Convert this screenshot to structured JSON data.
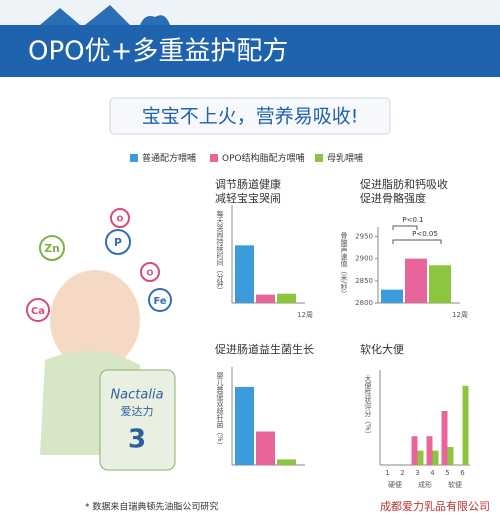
{
  "header": {
    "title": "OPO优+多重益护配方",
    "slogan": "宝宝不上火，营养易吸收!"
  },
  "legend": [
    {
      "name": "普通配方喂哺",
      "color": "#3b9bdb"
    },
    {
      "name": "OPO结构脂配方喂哺",
      "color": "#e8649a"
    },
    {
      "name": "母乳喂哺",
      "color": "#8cc63f"
    }
  ],
  "product": {
    "elements": [
      "Zn",
      "O",
      "P",
      "O",
      "Ca",
      "Fe"
    ],
    "brand": "Nactalia",
    "brand_cn": "爱达力",
    "stage": "3"
  },
  "footnote": "* 数据来自瑞典顿先油脂公司研究",
  "watermark": "成都爱力乳品有限公司",
  "chart_data": [
    {
      "type": "bar",
      "title": "调节肠道健康 减轻宝宝哭闹",
      "ylabel": "每天哭闹持续时间（分钟）",
      "xlabel": "12周",
      "values": [
        62,
        9,
        10
      ],
      "colors": [
        "#3b9bdb",
        "#e8649a",
        "#8cc63f"
      ],
      "ylim": [
        0,
        100
      ]
    },
    {
      "type": "bar",
      "title": "促进脂肪和钙吸收 促进骨骼强度",
      "ylabel": "骨骼声速值（米/秒）",
      "xlabel": "12周",
      "values": [
        2830,
        2900,
        2885
      ],
      "colors": [
        "#3b9bdb",
        "#e8649a",
        "#8cc63f"
      ],
      "ylim": [
        2800,
        2960
      ],
      "yticks": [
        2800,
        2850,
        2900,
        2950
      ],
      "annotations": [
        "P<0.1",
        "P<0.05"
      ]
    },
    {
      "type": "bar",
      "title": "促进肠道益生菌生长",
      "ylabel": "婴儿粪便双歧杆菌（%）",
      "values": [
        21,
        9,
        1.5
      ],
      "colors": [
        "#3b9bdb",
        "#e8649a",
        "#8cc63f"
      ],
      "ylim": [
        0,
        25
      ]
    },
    {
      "type": "grouped",
      "title": "软化大便",
      "ylabel": "大便性状评分（%）",
      "categories": [
        "1",
        "2",
        "3",
        "4",
        "5",
        "6"
      ],
      "group_labels": [
        "硬便",
        "成形",
        "软便"
      ],
      "series": [
        {
          "color": "#e8649a",
          "values": [
            0,
            0,
            8,
            8,
            15,
            0
          ]
        },
        {
          "color": "#8cc63f",
          "values": [
            0,
            0,
            4,
            4,
            5,
            22
          ]
        }
      ],
      "ylim": [
        0,
        25
      ]
    }
  ]
}
